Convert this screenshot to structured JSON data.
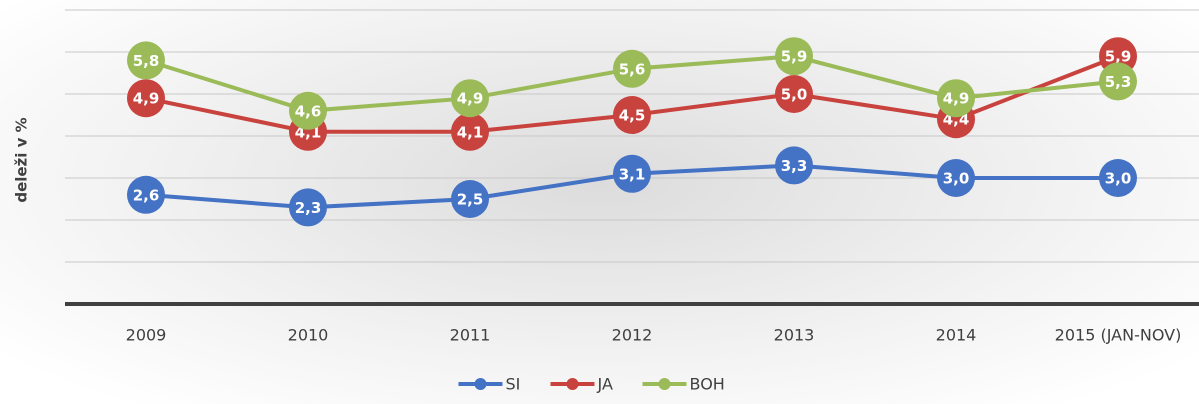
{
  "chart_data": {
    "type": "line",
    "y_label": "deleži v %",
    "categories": [
      "2009",
      "2010",
      "2011",
      "2012",
      "2013",
      "2014",
      "2015 (JAN-NOV)"
    ],
    "series": [
      {
        "name": "SI",
        "color": "#4472c4",
        "values": [
          2.6,
          2.3,
          2.5,
          3.1,
          3.3,
          3.0,
          3.0
        ],
        "value_labels": [
          "2,6",
          "2,3",
          "2,5",
          "3,1",
          "3,3",
          "3,0",
          "3,0"
        ]
      },
      {
        "name": "JA",
        "color": "#c8423e",
        "values": [
          4.9,
          4.1,
          4.1,
          4.5,
          5.0,
          4.4,
          5.9
        ],
        "value_labels": [
          "4,9",
          "4,1",
          "4,1",
          "4,5",
          "5,0",
          "4,4",
          "5,9"
        ]
      },
      {
        "name": "BOH",
        "color": "#9bbb59",
        "values": [
          5.8,
          4.6,
          4.9,
          5.6,
          5.9,
          4.9,
          5.3
        ],
        "value_labels": [
          "5,8",
          "4,6",
          "4,9",
          "5,6",
          "5,9",
          "4,9",
          "5,3"
        ]
      }
    ],
    "ylim": [
      0,
      7
    ],
    "yticks": [
      0,
      1,
      2,
      3,
      4,
      5,
      6,
      7
    ],
    "grid": true,
    "legend": "bottom"
  }
}
